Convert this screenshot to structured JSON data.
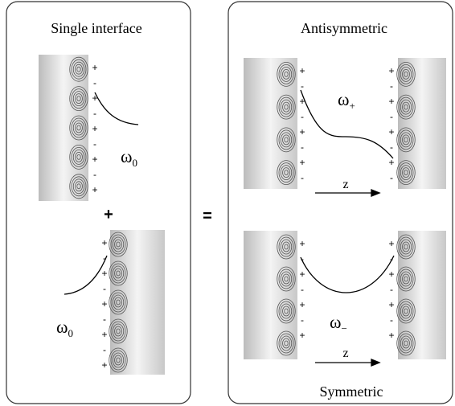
{
  "left_panel": {
    "title": "Single interface",
    "operator": "+",
    "omega_label": {
      "symbol": "ω",
      "subscript": "0"
    }
  },
  "equals": "=",
  "right_panel": {
    "top_title": "Antisymmetric",
    "bottom_title": "Symmetric",
    "omega_plus": {
      "symbol": "ω",
      "subscript": "+"
    },
    "omega_minus": {
      "symbol": "ω",
      "subscript": "−"
    },
    "axis_label": "z"
  },
  "charges": {
    "positive": "+",
    "negative": "-"
  }
}
